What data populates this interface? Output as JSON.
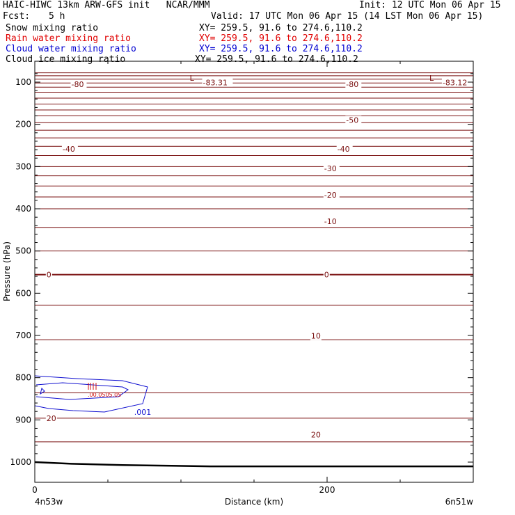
{
  "header": {
    "left1": "HAIC-HIWC 13km ARW-GFS init   NCAR/MMM",
    "right1": "Init: 12 UTC Mon 06 Apr 15",
    "fcst_label": "Fcst:",
    "fcst_value": "5 h",
    "valid": "Valid: 17 UTC Mon 06 Apr 15 (14 LST Mon 06 Apr 15)",
    "fields": [
      {
        "name": "Snow mixing ratio",
        "xy": "XY= 259.5, 91.6 to 274.6,110.2",
        "color": "#000000"
      },
      {
        "name": "Rain water mixing ratio",
        "xy": "XY= 259.5, 91.6 to 274.6,110.2",
        "color": "#e00000"
      },
      {
        "name": "Cloud water mixing ratio",
        "xy": "XY= 259.5, 91.6 to 274.6,110.2",
        "color": "#0000d0"
      },
      {
        "name": "Cloud ice mixing ratio",
        "xy": "XY= 259.5, 91.6 to 274.6,110.2",
        "color": "#000000"
      }
    ]
  },
  "colors": {
    "isotherm": "#7a1010",
    "cloud": "#1010d0",
    "rain": "#d01010",
    "ground": "#000000",
    "frame": "#000000"
  },
  "chart_data": {
    "type": "line",
    "title": "",
    "xlabel": "Distance (km)",
    "ylabel": "Pressure (hPa)",
    "xlim": [
      0,
      300
    ],
    "ylim": [
      1050,
      75
    ],
    "x_ticks": [
      {
        "value": 0,
        "label": "0"
      },
      {
        "value": 200,
        "label": "200"
      }
    ],
    "x_minor": [
      50,
      100,
      150,
      250
    ],
    "y_ticks": [
      100,
      200,
      300,
      400,
      500,
      600,
      700,
      800,
      900,
      1000
    ],
    "x_end_labels": {
      "left": "4n53w",
      "right": "6n51w"
    },
    "isotherm_pressures": [
      78,
      85,
      93,
      102,
      112,
      124,
      138,
      152,
      166,
      180,
      196,
      214,
      232,
      252,
      274,
      300,
      322,
      346,
      372,
      400,
      444,
      500,
      556,
      628,
      710,
      836,
      896,
      952
    ],
    "isotherm_labels": [
      {
        "text": "-80",
        "x": 25,
        "p": 105
      },
      {
        "text": "-83.31",
        "x": 115,
        "p": 101
      },
      {
        "text": "-80",
        "x": 213,
        "p": 105
      },
      {
        "text": "-83.12",
        "x": 279,
        "p": 101
      },
      {
        "text": "-50",
        "x": 213,
        "p": 190
      },
      {
        "text": "-40",
        "x": 19,
        "p": 258
      },
      {
        "text": "-40",
        "x": 207,
        "p": 258
      },
      {
        "text": "-30",
        "x": 198,
        "p": 304
      },
      {
        "text": "-20",
        "x": 198,
        "p": 367
      },
      {
        "text": "-10",
        "x": 198,
        "p": 430
      },
      {
        "text": "0",
        "x": 8,
        "p": 556
      },
      {
        "text": "0",
        "x": 198,
        "p": 556
      },
      {
        "text": "10",
        "x": 189,
        "p": 701
      },
      {
        "text": "20",
        "x": 8,
        "p": 896
      },
      {
        "text": "20",
        "x": 189,
        "p": 935
      }
    ],
    "lows": [
      {
        "text": "L",
        "x": 106,
        "p": 90
      },
      {
        "text": "L",
        "x": 270,
        "p": 90
      }
    ],
    "cloud_label": {
      "text": ".001",
      "x": 68,
      "p": 881
    },
    "ground_pressure": [
      {
        "x": 0,
        "p": 1000
      },
      {
        "x": 25,
        "p": 1004
      },
      {
        "x": 60,
        "p": 1007
      },
      {
        "x": 120,
        "p": 1010
      },
      {
        "x": 300,
        "p": 1010
      }
    ]
  }
}
